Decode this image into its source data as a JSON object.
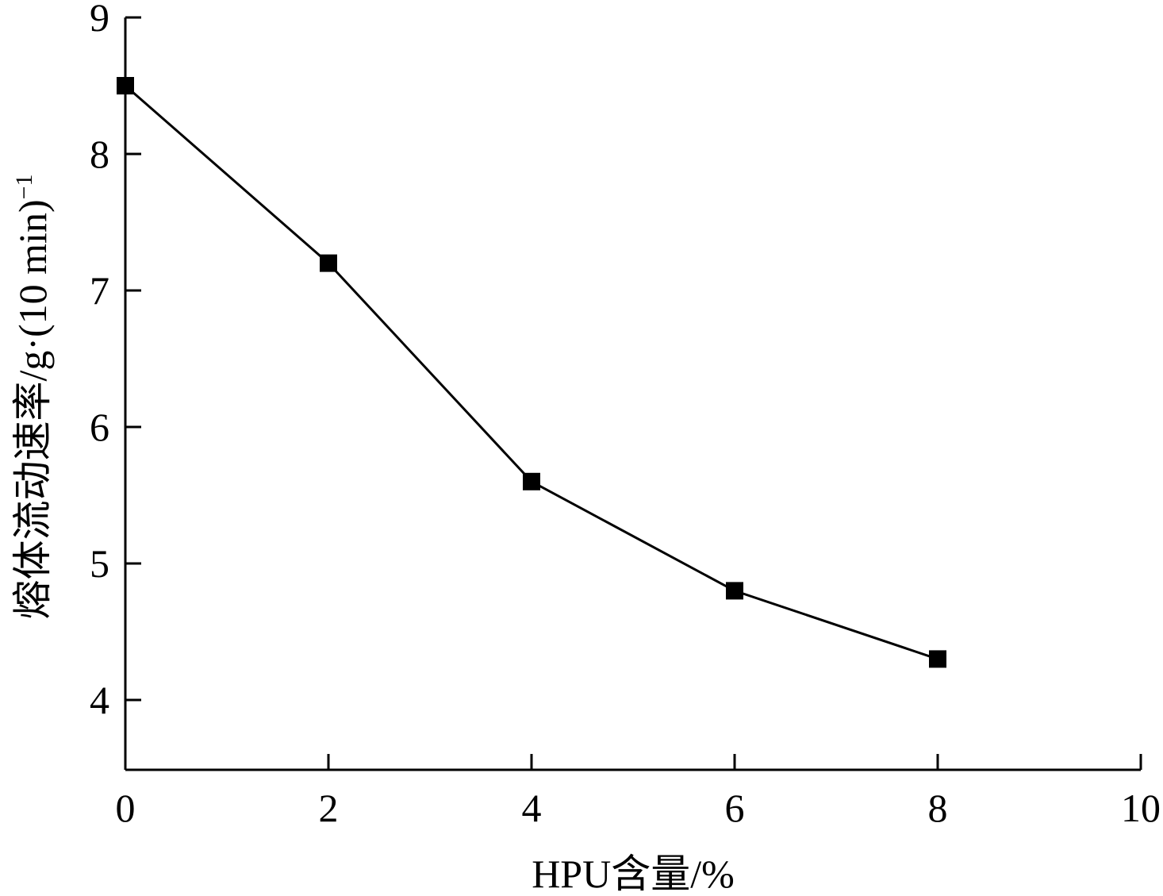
{
  "chart_data": {
    "type": "line",
    "title": "",
    "xlabel": "HPU含量/%",
    "ylabel": {
      "main": "熔体流动速率/g·(10 min)",
      "sup": "−1"
    },
    "x": [
      0,
      2,
      4,
      6,
      8
    ],
    "series": [
      {
        "name": "",
        "values": [
          8.5,
          7.2,
          5.6,
          4.8,
          4.3
        ],
        "marker": "square",
        "color": "#000000"
      }
    ],
    "xlim": [
      0,
      10
    ],
    "ylim": [
      3.5,
      9
    ],
    "xticks": [
      0,
      2,
      4,
      6,
      8,
      10
    ],
    "yticks": [
      4,
      5,
      6,
      7,
      8,
      9
    ],
    "xtick_labels": [
      "0",
      "2",
      "4",
      "6",
      "8",
      "10"
    ],
    "ytick_labels": [
      "4",
      "5",
      "6",
      "7",
      "8",
      "9"
    ],
    "grid": false,
    "legend": "none"
  }
}
